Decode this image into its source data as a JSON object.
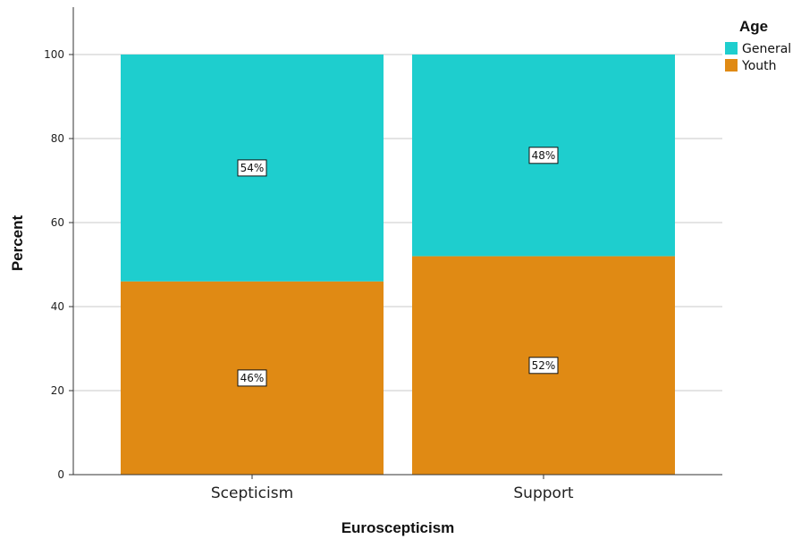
{
  "chart_data": {
    "type": "bar",
    "stacked": true,
    "categories": [
      "Scepticism",
      "Support"
    ],
    "series": [
      {
        "name": "Youth",
        "values": [
          46,
          52
        ],
        "labels": [
          "46%",
          "52%"
        ],
        "color": "#e08a14"
      },
      {
        "name": "General",
        "values": [
          54,
          48
        ],
        "labels": [
          "54%",
          "48%"
        ],
        "color": "#1ecece"
      }
    ],
    "xlabel": "Euroscepticism",
    "ylabel": "Percent",
    "ylim": [
      0,
      100
    ],
    "yticks": [
      0,
      20,
      40,
      60,
      80,
      100
    ],
    "grid": true,
    "legend": {
      "title": "Age",
      "position": "top-right",
      "items": [
        "General",
        "Youth"
      ]
    }
  }
}
